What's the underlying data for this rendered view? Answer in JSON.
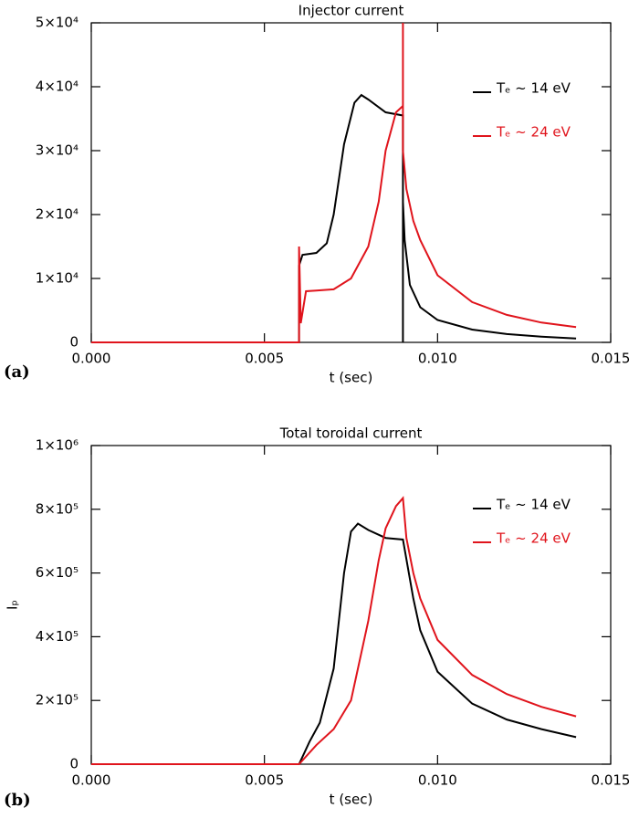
{
  "chart_data": [
    {
      "type": "line",
      "title": "Injector current",
      "xlabel": "t (sec)",
      "panel_label": "(a)",
      "xlim": [
        0,
        0.015
      ],
      "xticks": [
        {
          "value": 0,
          "label": "0.000"
        },
        {
          "value": 0.005,
          "label": "0.005"
        },
        {
          "value": 0.01,
          "label": "0.010"
        },
        {
          "value": 0.015,
          "label": "0.015"
        }
      ],
      "ylim": [
        0,
        50000
      ],
      "yticks": [
        0,
        {
          "value": 10000,
          "label": "1×10⁴"
        },
        {
          "value": 20000,
          "label": "2×10⁴"
        },
        {
          "value": 30000,
          "label": "3×10⁴"
        },
        {
          "value": 40000,
          "label": "4×10⁴"
        },
        {
          "value": 50000,
          "label": "5×10⁴"
        }
      ],
      "series": [
        {
          "name": "Tₑ ~ 14 eV",
          "color": "#000000",
          "x": [
            0,
            0.006,
            0.006,
            0.0061,
            0.0065,
            0.0068,
            0.007,
            0.0073,
            0.0076,
            0.0078,
            0.008,
            0.0085,
            0.009,
            0.009,
            0.009,
            0.00905,
            0.0092,
            0.0095,
            0.01,
            0.011,
            0.012,
            0.013,
            0.014
          ],
          "values": [
            0,
            0,
            12000,
            13700,
            14000,
            15500,
            20000,
            31000,
            37500,
            38700,
            38000,
            36000,
            35500,
            0,
            22000,
            16000,
            9000,
            5500,
            3500,
            2000,
            1300,
            900,
            600
          ]
        },
        {
          "name": "Tₑ ~ 24 eV",
          "color": "#e0141c",
          "x": [
            0,
            0.006,
            0.006,
            0.00605,
            0.0062,
            0.0065,
            0.007,
            0.0075,
            0.008,
            0.0083,
            0.0085,
            0.0088,
            0.009,
            0.009,
            0.009,
            0.0091,
            0.0093,
            0.0095,
            0.01,
            0.011,
            0.012,
            0.013,
            0.014
          ],
          "values": [
            0,
            0,
            15000,
            3000,
            8000,
            8100,
            8300,
            10000,
            15000,
            22000,
            30000,
            36000,
            37000,
            50000,
            30000,
            24000,
            19000,
            16000,
            10500,
            6300,
            4300,
            3100,
            2400
          ]
        }
      ]
    },
    {
      "type": "line",
      "title": "Total toroidal current",
      "xlabel": "t (sec)",
      "ylabel": "Iₚ",
      "panel_label": "(b)",
      "xlim": [
        0,
        0.015
      ],
      "xticks": [
        {
          "value": 0,
          "label": "0.000"
        },
        {
          "value": 0.005,
          "label": "0.005"
        },
        {
          "value": 0.01,
          "label": "0.010"
        },
        {
          "value": 0.015,
          "label": "0.015"
        }
      ],
      "ylim": [
        0,
        1000000
      ],
      "yticks": [
        0,
        {
          "value": 200000,
          "label": "2×10⁵"
        },
        {
          "value": 400000,
          "label": "4×10⁵"
        },
        {
          "value": 600000,
          "label": "6×10⁵"
        },
        {
          "value": 800000,
          "label": "8×10⁵"
        },
        {
          "value": 1000000,
          "label": "1×10⁶"
        }
      ],
      "series": [
        {
          "name": "Tₑ ~ 14 eV",
          "color": "#000000",
          "x": [
            0,
            0.006,
            0.0063,
            0.0066,
            0.007,
            0.0073,
            0.0075,
            0.0077,
            0.008,
            0.0085,
            0.009,
            0.0093,
            0.0095,
            0.01,
            0.011,
            0.012,
            0.013,
            0.014
          ],
          "values": [
            0,
            0,
            70000,
            130000,
            300000,
            600000,
            730000,
            755000,
            735000,
            710000,
            705000,
            520000,
            420000,
            290000,
            190000,
            140000,
            110000,
            85000
          ]
        },
        {
          "name": "Tₑ ~ 24 eV",
          "color": "#e0141c",
          "x": [
            0,
            0.006,
            0.0065,
            0.007,
            0.0075,
            0.008,
            0.0083,
            0.0085,
            0.0088,
            0.009,
            0.0091,
            0.0093,
            0.0095,
            0.01,
            0.011,
            0.012,
            0.013,
            0.014
          ],
          "values": [
            0,
            0,
            60000,
            110000,
            200000,
            450000,
            640000,
            740000,
            810000,
            835000,
            710000,
            600000,
            520000,
            390000,
            280000,
            220000,
            180000,
            150000
          ]
        }
      ]
    }
  ]
}
